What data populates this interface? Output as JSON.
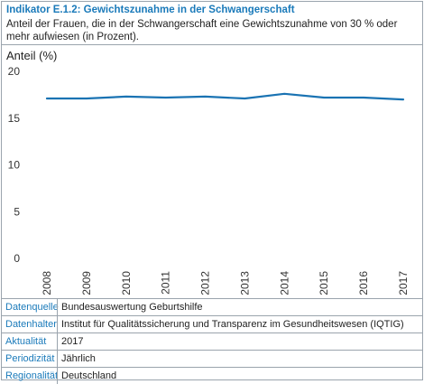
{
  "header": {
    "title": "Indikator E.1.2: Gewichtszunahme in der Schwangerschaft",
    "subtitle": "Anteil der Frauen, die in der Schwangerschaft eine Gewichtszunahme von 30 % oder mehr aufwiesen (in Prozent)."
  },
  "chart_data": {
    "type": "line",
    "ylabel": "Anteil (%)",
    "xlabel": "",
    "x": [
      "2008",
      "2009",
      "2010",
      "2011",
      "2012",
      "2013",
      "2014",
      "2015",
      "2016",
      "2017"
    ],
    "yticks": [
      "0",
      "5",
      "10",
      "15",
      "20"
    ],
    "ylim": [
      0,
      20
    ],
    "grid": false,
    "series": [
      {
        "values": [
          17.1,
          17.1,
          17.3,
          17.2,
          17.3,
          17.1,
          17.6,
          17.2,
          17.2,
          17.0
        ],
        "color": "#1a73b3"
      }
    ]
  },
  "meta": [
    {
      "label": "Datenquelle",
      "value": "Bundesauswertung Geburtshilfe"
    },
    {
      "label": "Datenhalter",
      "value": "Institut für Qualitätssicherung und Transparenz im Gesundheitswesen (IQTIG)"
    },
    {
      "label": "Aktualität",
      "value": "2017"
    },
    {
      "label": "Periodizität",
      "value": "Jährlich"
    },
    {
      "label": "Regionalität",
      "value": "Deutschland"
    }
  ],
  "colors": {
    "accent": "#1a7aba",
    "line": "#1a73b3",
    "border": "#9aa4ad",
    "text": "#222222"
  }
}
